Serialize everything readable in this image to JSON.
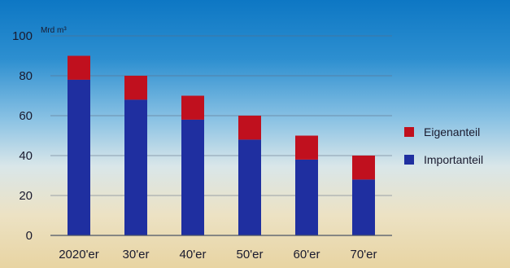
{
  "chart_data": {
    "type": "bar",
    "stacked": true,
    "categories": [
      "2020'er",
      "30'er",
      "40'er",
      "50'er",
      "60'er",
      "70'er"
    ],
    "series": [
      {
        "name": "Importanteil",
        "values": [
          78,
          68,
          58,
          48,
          38,
          28
        ],
        "color": "#1f2fa0"
      },
      {
        "name": "Eigenanteil",
        "values": [
          12,
          12,
          12,
          12,
          12,
          12
        ],
        "color": "#c0101e"
      }
    ],
    "ylabel": "Mrd m³",
    "ylim": [
      0,
      100
    ],
    "yticks": [
      0,
      20,
      40,
      60,
      80,
      100
    ],
    "grid": true,
    "legend_position": "right",
    "legend_order": [
      "Eigenanteil",
      "Importanteil"
    ]
  }
}
